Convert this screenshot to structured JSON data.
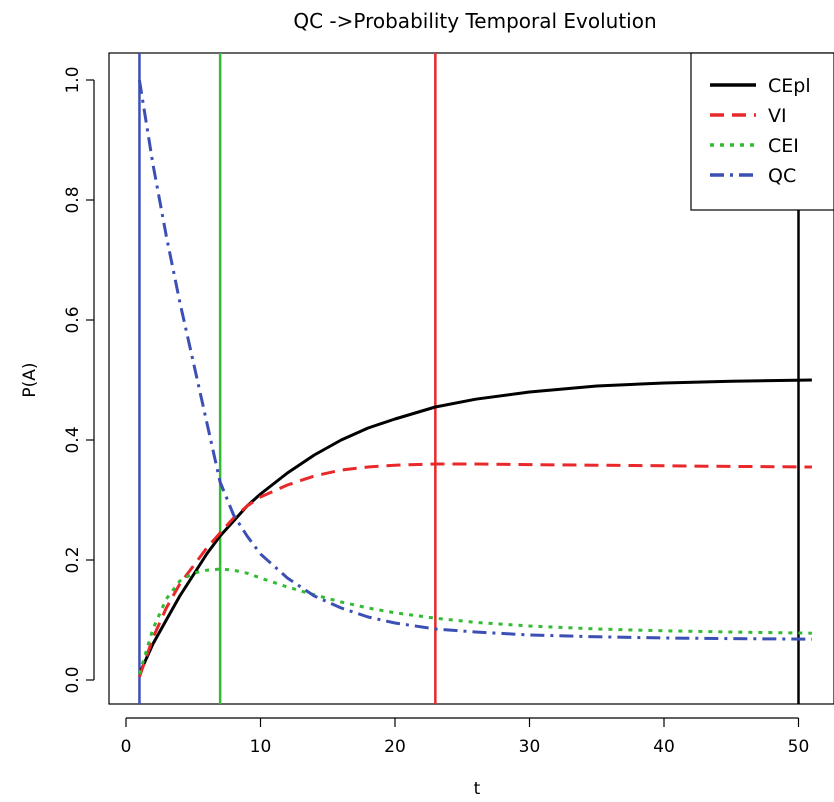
{
  "chart_data": {
    "type": "line",
    "title": "QC ->Probability Temporal Evolution",
    "xlabel": "t",
    "ylabel": "P(A)",
    "xlim": [
      0,
      51
    ],
    "ylim": [
      0.0,
      1.0
    ],
    "x_ticks": [
      0,
      10,
      20,
      30,
      40,
      50
    ],
    "x_tick_labels": [
      "0",
      "10",
      "20",
      "30",
      "40",
      "50"
    ],
    "y_ticks": [
      0.0,
      0.2,
      0.4,
      0.6,
      0.8,
      1.0
    ],
    "y_tick_labels": [
      "0.0",
      "0.2",
      "0.4",
      "0.6",
      "0.8",
      "1.0"
    ],
    "legend_position": "top-right",
    "grid": false,
    "series": [
      {
        "name": "CEpl",
        "color": "#000000",
        "style": "solid",
        "x": [
          1,
          2,
          3,
          4,
          5,
          6,
          7,
          8,
          9,
          10,
          12,
          14,
          16,
          18,
          20,
          23,
          26,
          30,
          35,
          40,
          45,
          51
        ],
        "y": [
          0.01,
          0.06,
          0.1,
          0.14,
          0.175,
          0.21,
          0.24,
          0.265,
          0.29,
          0.31,
          0.345,
          0.375,
          0.4,
          0.42,
          0.435,
          0.455,
          0.468,
          0.48,
          0.49,
          0.495,
          0.498,
          0.5
        ]
      },
      {
        "name": "VI",
        "color": "#e8282a",
        "style": "dashed",
        "x": [
          1,
          2,
          3,
          4,
          5,
          6,
          7,
          8,
          9,
          10,
          12,
          14,
          16,
          18,
          20,
          23,
          26,
          30,
          35,
          40,
          45,
          51
        ],
        "y": [
          0.005,
          0.07,
          0.12,
          0.16,
          0.19,
          0.22,
          0.245,
          0.27,
          0.29,
          0.305,
          0.325,
          0.34,
          0.35,
          0.355,
          0.358,
          0.36,
          0.36,
          0.359,
          0.358,
          0.357,
          0.356,
          0.355
        ]
      },
      {
        "name": "CEI",
        "color": "#33bb33",
        "style": "dotted",
        "x": [
          1,
          2,
          3,
          4,
          5,
          6,
          7,
          8,
          9,
          10,
          12,
          14,
          16,
          18,
          20,
          23,
          26,
          30,
          35,
          40,
          45,
          51
        ],
        "y": [
          0.01,
          0.085,
          0.135,
          0.165,
          0.178,
          0.183,
          0.185,
          0.183,
          0.178,
          0.17,
          0.155,
          0.142,
          0.13,
          0.12,
          0.112,
          0.103,
          0.096,
          0.09,
          0.085,
          0.082,
          0.08,
          0.078
        ]
      },
      {
        "name": "QC",
        "color": "#3c4fb5",
        "style": "dashdot",
        "x": [
          1,
          2,
          3,
          4,
          5,
          6,
          7,
          8,
          9,
          10,
          12,
          14,
          16,
          18,
          20,
          23,
          26,
          30,
          35,
          40,
          45,
          51
        ],
        "y": [
          1.0,
          0.86,
          0.74,
          0.63,
          0.53,
          0.43,
          0.33,
          0.275,
          0.24,
          0.21,
          0.17,
          0.14,
          0.12,
          0.105,
          0.095,
          0.085,
          0.08,
          0.075,
          0.072,
          0.07,
          0.069,
          0.068
        ]
      }
    ],
    "vertical_lines": [
      {
        "x": 1,
        "color": "#3c4fb5"
      },
      {
        "x": 7,
        "color": "#33bb33"
      },
      {
        "x": 23,
        "color": "#e8282a"
      },
      {
        "x": 50,
        "color": "#000000"
      }
    ]
  }
}
